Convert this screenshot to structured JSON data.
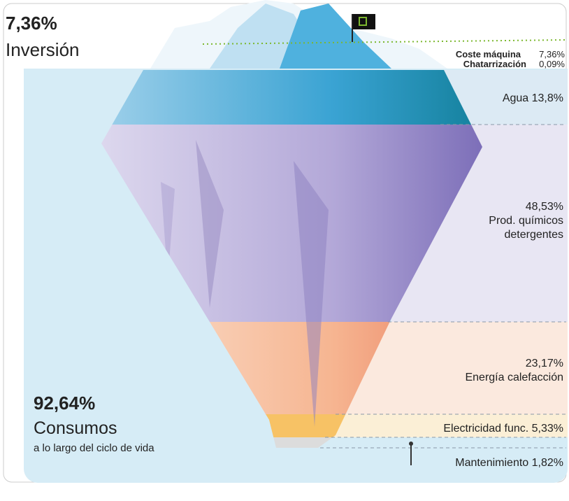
{
  "header": {
    "value": "7,36%",
    "label": "Inversión"
  },
  "above_water": [
    {
      "name": "Coste máquina",
      "value": "7,36%"
    },
    {
      "name": "Chatarrización",
      "value": "0,09%"
    }
  ],
  "layers": [
    {
      "text": [
        "Agua 13,8%"
      ]
    },
    {
      "text": [
        "48,53%",
        "Prod. químicos",
        "detergentes"
      ]
    },
    {
      "text": [
        "23,17%",
        "Energía calefacción"
      ]
    },
    {
      "text": [
        "Electricidad func. 5,33%"
      ]
    },
    {
      "text": [
        "Mantenimiento 1,82%"
      ]
    }
  ],
  "footer": {
    "value": "92,64%",
    "label": "Consumos",
    "sublabel": "a lo largo del ciclo de vida"
  }
}
